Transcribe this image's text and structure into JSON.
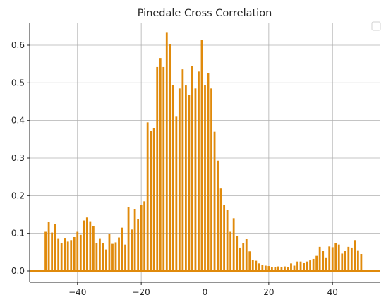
{
  "chart_data": {
    "type": "bar",
    "title": "Pinedale Cross Correlation",
    "xlabel": "",
    "ylabel": "",
    "xlim": [
      -55,
      55
    ],
    "ylim": [
      -0.03,
      0.66
    ],
    "xticks": [
      -40,
      -20,
      0,
      20,
      40
    ],
    "yticks": [
      0.0,
      0.1,
      0.2,
      0.3,
      0.4,
      0.5,
      0.6
    ],
    "grid": true,
    "legend": "top-right (empty)",
    "bar_color": "#e08a0b",
    "baseline_color": "#e08a0b",
    "series": [
      {
        "x": [
          -50,
          -49,
          -48,
          -47,
          -46,
          -45,
          -44,
          -43,
          -42,
          -41,
          -40,
          -39,
          -38,
          -37,
          -36,
          -35,
          -34,
          -33,
          -32,
          -31,
          -30,
          -29,
          -28,
          -27,
          -26,
          -25,
          -24,
          -23,
          -22,
          -21,
          -20,
          -19,
          -18,
          -17,
          -16,
          -15,
          -14,
          -13,
          -12,
          -11,
          -10,
          -9,
          -8,
          -7,
          -6,
          -5,
          -4,
          -3,
          -2,
          -1,
          0,
          1,
          2,
          3,
          4,
          5,
          6,
          7,
          8,
          9,
          10,
          11,
          12,
          13,
          14,
          15,
          16,
          17,
          18,
          19,
          20,
          21,
          22,
          23,
          24,
          25,
          26,
          27,
          28,
          29,
          30,
          31,
          32,
          33,
          34,
          35,
          36,
          37,
          38,
          39,
          40,
          41,
          42,
          43,
          44,
          45,
          46,
          47,
          48,
          49
        ],
        "values": [
          0.104,
          0.13,
          0.102,
          0.124,
          0.087,
          0.075,
          0.088,
          0.078,
          0.082,
          0.09,
          0.104,
          0.096,
          0.134,
          0.142,
          0.132,
          0.12,
          0.075,
          0.087,
          0.074,
          0.057,
          0.099,
          0.072,
          0.076,
          0.089,
          0.115,
          0.07,
          0.17,
          0.11,
          0.165,
          0.138,
          0.175,
          0.185,
          0.395,
          0.372,
          0.38,
          0.542,
          0.566,
          0.542,
          0.633,
          0.602,
          0.495,
          0.41,
          0.485,
          0.536,
          0.493,
          0.468,
          0.545,
          0.485,
          0.53,
          0.614,
          0.495,
          0.525,
          0.485,
          0.37,
          0.293,
          0.219,
          0.175,
          0.163,
          0.104,
          0.14,
          0.092,
          0.062,
          0.075,
          0.085,
          0.052,
          0.03,
          0.027,
          0.02,
          0.015,
          0.014,
          0.013,
          0.01,
          0.011,
          0.012,
          0.011,
          0.012,
          0.011,
          0.02,
          0.014,
          0.025,
          0.025,
          0.021,
          0.025,
          0.028,
          0.032,
          0.04,
          0.064,
          0.054,
          0.036,
          0.065,
          0.063,
          0.074,
          0.07,
          0.046,
          0.054,
          0.064,
          0.062,
          0.082,
          0.055,
          0.045
        ]
      }
    ]
  }
}
